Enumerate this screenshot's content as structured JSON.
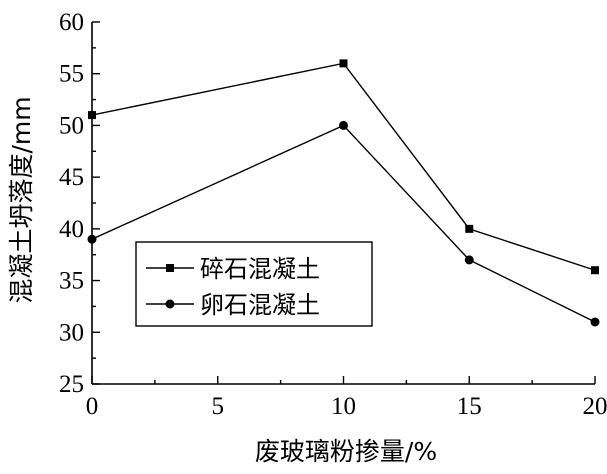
{
  "chart_data": {
    "type": "line",
    "xlabel": "废玻璃粉掺量/%",
    "ylabel": "混凝土坍落度/mm",
    "x": [
      0,
      10,
      15,
      20
    ],
    "xlim": [
      0,
      20
    ],
    "ylim": [
      25,
      60
    ],
    "xticks": [
      0,
      5,
      10,
      15,
      20
    ],
    "yticks": [
      25,
      30,
      35,
      40,
      45,
      50,
      55,
      60
    ],
    "grid": false,
    "legend_position": "center-left",
    "series": [
      {
        "name": "碎石混凝土",
        "marker": "square",
        "values": [
          51,
          56,
          40,
          36
        ]
      },
      {
        "name": "卵石混凝土",
        "marker": "circle",
        "values": [
          39,
          50,
          37,
          31
        ]
      }
    ]
  }
}
